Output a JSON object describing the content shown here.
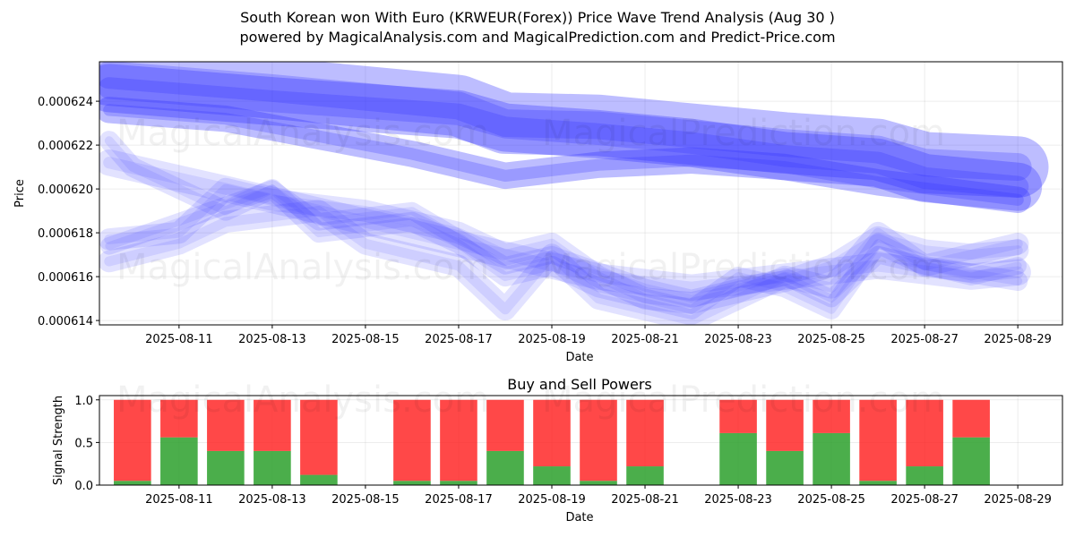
{
  "title_line1": "South Korean won With Euro (KRWEUR(Forex)) Price Wave Trend Analysis (Aug 30 )",
  "title_line2": "powered by MagicalAnalysis.com and MagicalPrediction.com and Predict-Price.com",
  "watermarks": [
    "MagicalAnalysis.com",
    "MagicalPrediction.com"
  ],
  "colors": {
    "wave": "#3333ff",
    "buy": "#2ca02c",
    "sell": "#ff2020",
    "buy_strong": "#118c11",
    "sell_strong": "#ff0000"
  },
  "chart_data": [
    {
      "type": "area",
      "title": "",
      "xlabel": "Date",
      "ylabel": "Price",
      "x_ticks": [
        "2025-08-11",
        "2025-08-13",
        "2025-08-15",
        "2025-08-17",
        "2025-08-19",
        "2025-08-21",
        "2025-08-23",
        "2025-08-25",
        "2025-08-27",
        "2025-08-29"
      ],
      "y_ticks": [
        "0.000614",
        "0.000616",
        "0.000618",
        "0.000620",
        "0.000622",
        "0.000624"
      ],
      "ylim": [
        0.0006138,
        0.0006258
      ],
      "xlim": [
        "2025-08-09T07:00",
        "2025-08-29T23:00"
      ],
      "grid": true,
      "series": [
        {
          "x": [
            "2025-08-09T12:00",
            "2025-08-13",
            "2025-08-17",
            "2025-08-18",
            "2025-08-20",
            "2025-08-22",
            "2025-08-24",
            "2025-08-26",
            "2025-08-27",
            "2025-08-29"
          ],
          "values": [
            0.0006252,
            0.0006246,
            0.0006238,
            0.000623,
            0.0006229,
            0.0006225,
            0.0006221,
            0.0006218,
            0.0006212,
            0.000621
          ],
          "band": 2.8e-06
        },
        {
          "x": [
            "2025-08-09T12:00",
            "2025-08-13",
            "2025-08-17",
            "2025-08-18",
            "2025-08-20",
            "2025-08-22",
            "2025-08-24",
            "2025-08-26",
            "2025-08-27",
            "2025-08-29"
          ],
          "values": [
            0.0006246,
            0.000624,
            0.0006234,
            0.0006228,
            0.0006225,
            0.0006221,
            0.0006215,
            0.0006212,
            0.0006205,
            0.0006201
          ],
          "band": 2.2e-06
        },
        {
          "x": [
            "2025-08-09T12:00",
            "2025-08-12",
            "2025-08-14",
            "2025-08-16",
            "2025-08-18",
            "2025-08-20",
            "2025-08-22",
            "2025-08-24",
            "2025-08-26",
            "2025-08-29"
          ],
          "values": [
            0.0006236,
            0.0006232,
            0.0006224,
            0.0006216,
            0.0006206,
            0.0006211,
            0.0006213,
            0.000621,
            0.0006203,
            0.0006195
          ],
          "band": 1.2e-06
        },
        {
          "x": [
            "2025-08-09T12:00",
            "2025-08-11",
            "2025-08-12",
            "2025-08-13",
            "2025-08-15",
            "2025-08-17",
            "2025-08-18",
            "2025-08-19",
            "2025-08-20",
            "2025-08-21",
            "2025-08-22",
            "2025-08-24",
            "2025-08-25",
            "2025-08-26",
            "2025-08-27",
            "2025-08-28",
            "2025-08-29"
          ],
          "values": [
            0.0006177,
            0.000618,
            0.00062,
            0.0006195,
            0.000619,
            0.000618,
            0.000617,
            0.0006175,
            0.000616,
            0.000615,
            0.0006148,
            0.0006158,
            0.0006165,
            0.0006178,
            0.0006172,
            0.000617,
            0.0006172
          ],
          "band": 1e-06
        },
        {
          "x": [
            "2025-08-09T12:00",
            "2025-08-11",
            "2025-08-13",
            "2025-08-14",
            "2025-08-16",
            "2025-08-18",
            "2025-08-19",
            "2025-08-21",
            "2025-08-22",
            "2025-08-24",
            "2025-08-25",
            "2025-08-26",
            "2025-08-28",
            "2025-08-29"
          ],
          "values": [
            0.0006174,
            0.0006185,
            0.00062,
            0.0006185,
            0.000619,
            0.0006165,
            0.000617,
            0.0006155,
            0.000615,
            0.000616,
            0.000615,
            0.000617,
            0.000616,
            0.0006165
          ],
          "band": 8e-07
        },
        {
          "x": [
            "2025-08-09T12:00",
            "2025-08-10",
            "2025-08-12",
            "2025-08-13",
            "2025-08-14",
            "2025-08-16",
            "2025-08-17",
            "2025-08-18",
            "2025-08-19",
            "2025-08-20",
            "2025-08-21",
            "2025-08-22",
            "2025-08-23",
            "2025-08-24",
            "2025-08-25",
            "2025-08-26",
            "2025-08-27",
            "2025-08-29"
          ],
          "values": [
            0.0006222,
            0.000621,
            0.000619,
            0.00062,
            0.000618,
            0.0006185,
            0.0006175,
            0.000616,
            0.0006165,
            0.0006155,
            0.000615,
            0.0006145,
            0.000616,
            0.0006155,
            0.0006145,
            0.0006175,
            0.0006165,
            0.0006158
          ],
          "band": 9e-07
        },
        {
          "x": [
            "2025-08-09T12:00",
            "2025-08-11",
            "2025-08-12",
            "2025-08-14",
            "2025-08-15",
            "2025-08-17",
            "2025-08-18",
            "2025-08-19",
            "2025-08-20",
            "2025-08-22",
            "2025-08-23",
            "2025-08-24",
            "2025-08-25",
            "2025-08-26",
            "2025-08-27",
            "2025-08-29"
          ],
          "values": [
            0.0006167,
            0.0006175,
            0.0006185,
            0.000619,
            0.0006175,
            0.0006165,
            0.0006145,
            0.000617,
            0.000615,
            0.000614,
            0.000615,
            0.000616,
            0.0006155,
            0.000618,
            0.0006165,
            0.0006175
          ],
          "band": 1e-06
        },
        {
          "x": [
            "2025-08-09T12:00",
            "2025-08-12",
            "2025-08-14",
            "2025-08-16",
            "2025-08-18",
            "2025-08-20",
            "2025-08-22",
            "2025-08-24",
            "2025-08-26",
            "2025-08-28",
            "2025-08-29"
          ],
          "values": [
            0.0006212,
            0.00062,
            0.000619,
            0.000618,
            0.000617,
            0.000616,
            0.0006155,
            0.000616,
            0.0006165,
            0.000616,
            0.0006162
          ],
          "band": 1.2e-06
        }
      ]
    },
    {
      "type": "bar",
      "title": "Buy and Sell Powers",
      "xlabel": "Date",
      "ylabel": "Signal Strength",
      "x_ticks": [
        "2025-08-11",
        "2025-08-13",
        "2025-08-15",
        "2025-08-17",
        "2025-08-19",
        "2025-08-21",
        "2025-08-23",
        "2025-08-25",
        "2025-08-27",
        "2025-08-29"
      ],
      "y_ticks": [
        "0.0",
        "0.5",
        "1.0"
      ],
      "ylim": [
        0,
        1.05
      ],
      "xlim": [
        "2025-08-09T07:00",
        "2025-08-29T23:00"
      ],
      "grid": true,
      "categories": [
        "2025-08-10",
        "2025-08-11",
        "2025-08-12",
        "2025-08-13",
        "2025-08-14",
        "2025-08-16",
        "2025-08-17",
        "2025-08-18",
        "2025-08-19",
        "2025-08-20",
        "2025-08-21",
        "2025-08-23",
        "2025-08-24",
        "2025-08-25",
        "2025-08-26",
        "2025-08-27",
        "2025-08-28"
      ],
      "series": [
        {
          "name": "Buy",
          "values": [
            0.05,
            0.56,
            0.4,
            0.4,
            0.12,
            0.05,
            0.05,
            0.4,
            0.22,
            0.05,
            0.22,
            0.61,
            0.4,
            0.61,
            0.05,
            0.22,
            0.56
          ]
        },
        {
          "name": "Sell",
          "values": [
            0.95,
            0.44,
            0.6,
            0.6,
            0.88,
            0.95,
            0.95,
            0.6,
            0.78,
            0.95,
            0.78,
            0.39,
            0.6,
            0.39,
            0.95,
            0.78,
            0.44
          ]
        }
      ]
    }
  ]
}
